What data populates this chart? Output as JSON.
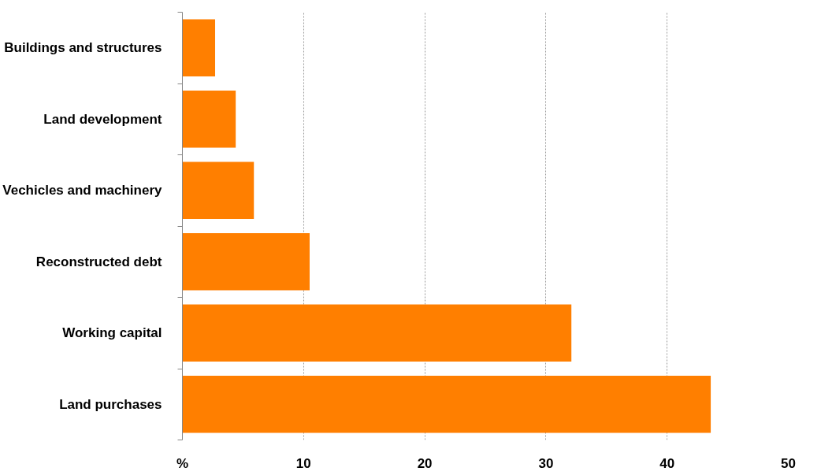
{
  "chart_data": {
    "type": "bar",
    "orientation": "horizontal",
    "categories": [
      "Buildings and structures",
      "Land development",
      "Vechicles and machinery",
      "Reconstructed debt",
      "Working capital",
      "Land purchases"
    ],
    "values": [
      2.7,
      4.4,
      5.9,
      10.5,
      32.1,
      43.6
    ],
    "color": "#ff7f00",
    "xlim": [
      0,
      50
    ],
    "xticks": [
      {
        "value": 0,
        "label": "%"
      },
      10,
      20,
      30,
      40,
      50
    ],
    "grid": "x"
  }
}
